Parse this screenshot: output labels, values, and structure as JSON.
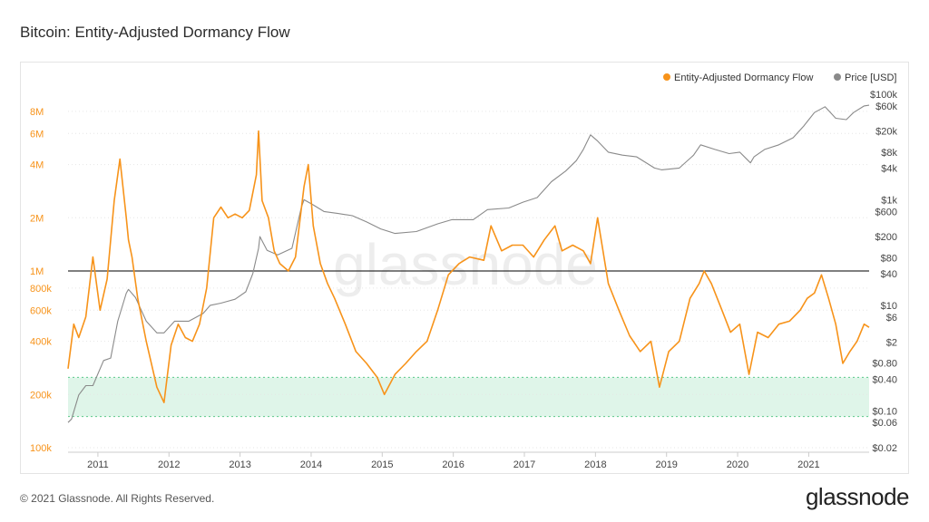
{
  "title": "Bitcoin: Entity-Adjusted Dormancy Flow",
  "footer": "© 2021 Glassnode. All Rights Reserved.",
  "brand": "glassnode",
  "watermark": "glassnode",
  "colors": {
    "flow": "#f7931a",
    "price": "#8a8a8a",
    "band": "#dff5e9",
    "band_edge": "#5cc98a",
    "threshold": "#333333"
  },
  "chart_data": {
    "type": "line",
    "title": "Bitcoin: Entity-Adjusted Dormancy Flow",
    "x_ticks": [
      "2011",
      "2012",
      "2013",
      "2014",
      "2015",
      "2016",
      "2017",
      "2018",
      "2019",
      "2020",
      "2021"
    ],
    "x_range": [
      2010.6,
      2021.87
    ],
    "y_left": {
      "scale": "log",
      "range": [
        100000,
        10000000
      ],
      "ticks": [
        {
          "v": 100000,
          "label": "100k"
        },
        {
          "v": 200000,
          "label": "200k"
        },
        {
          "v": 400000,
          "label": "400k"
        },
        {
          "v": 600000,
          "label": "600k"
        },
        {
          "v": 800000,
          "label": "800k"
        },
        {
          "v": 1000000,
          "label": "1M"
        },
        {
          "v": 2000000,
          "label": "2M"
        },
        {
          "v": 4000000,
          "label": "4M"
        },
        {
          "v": 6000000,
          "label": "6M"
        },
        {
          "v": 8000000,
          "label": "8M"
        }
      ]
    },
    "y_right": {
      "scale": "log",
      "range": [
        0.02,
        100000
      ],
      "ticks": [
        {
          "v": 0.02,
          "label": "$0.02"
        },
        {
          "v": 0.06,
          "label": "$0.06"
        },
        {
          "v": 0.1,
          "label": "$0.10"
        },
        {
          "v": 0.4,
          "label": "$0.40"
        },
        {
          "v": 0.8,
          "label": "$0.80"
        },
        {
          "v": 2,
          "label": "$2"
        },
        {
          "v": 6,
          "label": "$6"
        },
        {
          "v": 10,
          "label": "$10"
        },
        {
          "v": 40,
          "label": "$40"
        },
        {
          "v": 80,
          "label": "$80"
        },
        {
          "v": 200,
          "label": "$200"
        },
        {
          "v": 600,
          "label": "$600"
        },
        {
          "v": 1000,
          "label": "$1k"
        },
        {
          "v": 4000,
          "label": "$4k"
        },
        {
          "v": 8000,
          "label": "$8k"
        },
        {
          "v": 20000,
          "label": "$20k"
        },
        {
          "v": 60000,
          "label": "$60k"
        },
        {
          "v": 100000,
          "label": "$100k"
        }
      ]
    },
    "legend": {
      "position": "top-right",
      "items": [
        {
          "label": "Entity-Adjusted Dormancy Flow",
          "color": "#f7931a"
        },
        {
          "label": "Price [USD]",
          "color": "#8a8a8a"
        }
      ]
    },
    "threshold_line": 1000000,
    "green_band": [
      150000,
      250000
    ],
    "series": [
      {
        "name": "Entity-Adjusted Dormancy Flow",
        "axis": "left",
        "x": [
          2010.6,
          2010.68,
          2010.75,
          2010.85,
          2010.95,
          2011.05,
          2011.15,
          2011.25,
          2011.33,
          2011.42,
          2011.45,
          2011.5,
          2011.58,
          2011.7,
          2011.85,
          2011.95,
          2012.05,
          2012.15,
          2012.25,
          2012.35,
          2012.45,
          2012.55,
          2012.65,
          2012.75,
          2012.85,
          2012.95,
          2013.05,
          2013.15,
          2013.25,
          2013.28,
          2013.33,
          2013.42,
          2013.5,
          2013.58,
          2013.7,
          2013.8,
          2013.92,
          2013.98,
          2014.05,
          2014.15,
          2014.25,
          2014.35,
          2014.5,
          2014.65,
          2014.8,
          2014.95,
          2015.05,
          2015.2,
          2015.35,
          2015.5,
          2015.65,
          2015.8,
          2015.95,
          2016.1,
          2016.25,
          2016.45,
          2016.55,
          2016.7,
          2016.85,
          2017.0,
          2017.15,
          2017.3,
          2017.45,
          2017.55,
          2017.7,
          2017.85,
          2017.95,
          2018.05,
          2018.2,
          2018.35,
          2018.5,
          2018.65,
          2018.8,
          2018.92,
          2019.05,
          2019.2,
          2019.35,
          2019.48,
          2019.55,
          2019.65,
          2019.8,
          2019.92,
          2020.05,
          2020.18,
          2020.3,
          2020.45,
          2020.6,
          2020.75,
          2020.9,
          2021.0,
          2021.1,
          2021.2,
          2021.3,
          2021.4,
          2021.5,
          2021.6,
          2021.7,
          2021.8,
          2021.87
        ],
        "values": [
          280000,
          500000,
          420000,
          550000,
          1200000,
          600000,
          900000,
          2500000,
          4300000,
          2000000,
          1500000,
          1200000,
          700000,
          400000,
          220000,
          180000,
          380000,
          500000,
          420000,
          400000,
          500000,
          800000,
          2000000,
          2300000,
          2000000,
          2100000,
          2000000,
          2200000,
          3500000,
          6200000,
          2500000,
          2000000,
          1300000,
          1100000,
          1000000,
          1200000,
          3000000,
          4000000,
          1800000,
          1100000,
          850000,
          700000,
          500000,
          350000,
          300000,
          250000,
          200000,
          260000,
          300000,
          350000,
          400000,
          600000,
          950000,
          1100000,
          1200000,
          1150000,
          1800000,
          1300000,
          1400000,
          1400000,
          1200000,
          1500000,
          1800000,
          1300000,
          1400000,
          1300000,
          1100000,
          2000000,
          850000,
          600000,
          430000,
          350000,
          400000,
          220000,
          350000,
          400000,
          700000,
          850000,
          1000000,
          850000,
          600000,
          450000,
          500000,
          260000,
          450000,
          420000,
          500000,
          520000,
          600000,
          700000,
          750000,
          950000,
          700000,
          500000,
          300000,
          350000,
          400000,
          500000,
          480000
        ]
      },
      {
        "name": "Price [USD]",
        "axis": "right",
        "x": [
          2010.6,
          2010.65,
          2010.75,
          2010.85,
          2010.95,
          2011.1,
          2011.2,
          2011.3,
          2011.42,
          2011.45,
          2011.55,
          2011.7,
          2011.85,
          2011.95,
          2012.1,
          2012.3,
          2012.5,
          2012.6,
          2012.75,
          2012.95,
          2013.1,
          2013.2,
          2013.28,
          2013.3,
          2013.4,
          2013.55,
          2013.75,
          2013.88,
          2013.92,
          2014.05,
          2014.2,
          2014.4,
          2014.6,
          2014.8,
          2015.0,
          2015.2,
          2015.5,
          2015.8,
          2016.0,
          2016.3,
          2016.5,
          2016.8,
          2017.0,
          2017.2,
          2017.4,
          2017.6,
          2017.75,
          2017.85,
          2017.95,
          2018.05,
          2018.2,
          2018.4,
          2018.6,
          2018.85,
          2018.95,
          2019.2,
          2019.4,
          2019.5,
          2019.7,
          2019.9,
          2020.05,
          2020.2,
          2020.25,
          2020.4,
          2020.6,
          2020.8,
          2020.95,
          2021.1,
          2021.25,
          2021.4,
          2021.55,
          2021.65,
          2021.8,
          2021.87
        ],
        "values": [
          0.06,
          0.07,
          0.2,
          0.3,
          0.3,
          0.9,
          1.0,
          5,
          17,
          20,
          14,
          5,
          3,
          3,
          5,
          5,
          7,
          10,
          11,
          13,
          18,
          40,
          120,
          200,
          110,
          90,
          120,
          700,
          1000,
          800,
          600,
          550,
          500,
          380,
          280,
          230,
          250,
          350,
          420,
          420,
          650,
          700,
          900,
          1100,
          2200,
          3500,
          5500,
          9000,
          17000,
          13000,
          8000,
          7000,
          6500,
          4000,
          3700,
          4000,
          7000,
          11000,
          9000,
          7500,
          8000,
          5000,
          6500,
          9000,
          11000,
          15000,
          25000,
          45000,
          58000,
          35000,
          33000,
          45000,
          60000,
          62000
        ]
      }
    ]
  }
}
